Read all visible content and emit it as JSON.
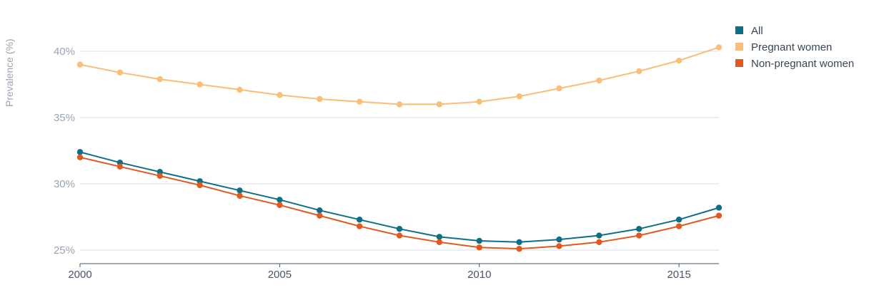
{
  "chart_data": {
    "type": "line",
    "title": "",
    "xlabel": "",
    "ylabel": "Prevalence (%)",
    "x": [
      2000,
      2001,
      2002,
      2003,
      2004,
      2005,
      2006,
      2007,
      2008,
      2009,
      2010,
      2011,
      2012,
      2013,
      2014,
      2015,
      2016
    ],
    "x_ticks": [
      2000,
      2005,
      2010,
      2015
    ],
    "x_tick_labels": [
      "2000",
      "2005",
      "2010",
      "2015"
    ],
    "y_ticks": [
      25,
      30,
      35,
      40
    ],
    "y_tick_labels": [
      "25%",
      "30%",
      "35%",
      "40%"
    ],
    "xlim": [
      2000,
      2016
    ],
    "ylim": [
      24,
      42
    ],
    "grid": true,
    "legend_position": "top-right",
    "series": [
      {
        "name": "All",
        "color": "#0e6e86",
        "values": [
          32.4,
          31.6,
          30.9,
          30.2,
          29.5,
          28.8,
          28.0,
          27.3,
          26.6,
          26.0,
          25.7,
          25.6,
          25.8,
          26.1,
          26.6,
          27.3,
          28.2
        ]
      },
      {
        "name": "Pregnant women",
        "color": "#fbbe78",
        "values": [
          39.0,
          38.4,
          37.9,
          37.5,
          37.1,
          36.7,
          36.4,
          36.2,
          36.0,
          36.0,
          36.2,
          36.6,
          37.2,
          37.8,
          38.5,
          39.3,
          40.3
        ]
      },
      {
        "name": "Non-pregnant women",
        "color": "#e05a1f",
        "values": [
          32.0,
          31.3,
          30.6,
          29.9,
          29.1,
          28.4,
          27.6,
          26.8,
          26.1,
          25.6,
          25.2,
          25.1,
          25.3,
          25.6,
          26.1,
          26.8,
          27.6
        ]
      }
    ]
  }
}
